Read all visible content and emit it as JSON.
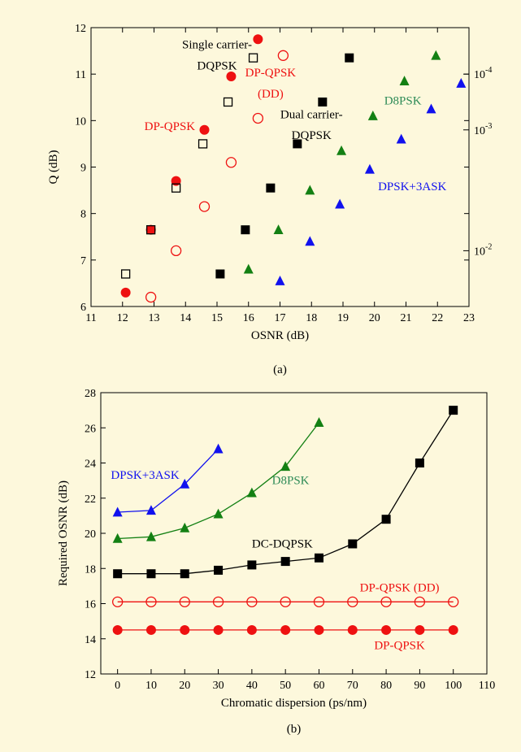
{
  "colors": {
    "background": "#fdf8dc",
    "red": "#ee1111",
    "black": "#000000",
    "green": "#138013",
    "blue": "#1111ee",
    "d8psk_label": "#2e8b57",
    "axis": "#000000"
  },
  "chart_data": [
    {
      "type": "scatter",
      "caption": "(a)",
      "xlabel": "OSNR (dB)",
      "ylabel": "Q (dB)",
      "xlim": [
        11,
        23
      ],
      "ylim": [
        6,
        12
      ],
      "xticks": [
        11,
        12,
        13,
        14,
        15,
        16,
        17,
        18,
        19,
        20,
        21,
        22,
        23
      ],
      "yticks": [
        6,
        7,
        8,
        9,
        10,
        11,
        12
      ],
      "right_axis": {
        "scale": "log (BER)",
        "ticks": [
          {
            "label": "10",
            "exponent": "-4",
            "q": 11.0
          },
          {
            "label": "10",
            "exponent": "-3",
            "q": 9.8
          },
          {
            "label": "10",
            "exponent": "-2",
            "q": 7.2
          }
        ]
      },
      "series": [
        {
          "name": "DP-QPSK",
          "marker": "circle-filled",
          "color": "#ee1111",
          "points": [
            [
              12.1,
              6.3
            ],
            [
              12.9,
              7.65
            ],
            [
              13.7,
              8.7
            ],
            [
              14.6,
              9.8
            ],
            [
              15.45,
              10.95
            ],
            [
              16.3,
              11.75
            ]
          ]
        },
        {
          "name": "DP-QPSK (DD)",
          "marker": "circle-open",
          "color": "#ee1111",
          "points": [
            [
              12.9,
              6.2
            ],
            [
              13.7,
              7.2
            ],
            [
              14.6,
              8.15
            ],
            [
              15.45,
              9.1
            ],
            [
              16.3,
              10.05
            ],
            [
              17.1,
              11.4
            ]
          ]
        },
        {
          "name": "Single carrier-DQPSK",
          "marker": "square-open",
          "color": "#000000",
          "points": [
            [
              12.1,
              6.7
            ],
            [
              12.9,
              7.65
            ],
            [
              13.7,
              8.55
            ],
            [
              14.55,
              9.5
            ],
            [
              15.35,
              10.4
            ],
            [
              16.15,
              11.35
            ]
          ]
        },
        {
          "name": "Dual carrier-DQPSK",
          "marker": "square-filled",
          "color": "#000000",
          "points": [
            [
              15.1,
              6.7
            ],
            [
              15.9,
              7.65
            ],
            [
              16.7,
              8.55
            ],
            [
              17.55,
              9.5
            ],
            [
              18.35,
              10.4
            ],
            [
              19.2,
              11.35
            ]
          ]
        },
        {
          "name": "D8PSK",
          "marker": "triangle-filled",
          "color": "#138013",
          "points": [
            [
              16.0,
              6.8
            ],
            [
              16.95,
              7.65
            ],
            [
              17.95,
              8.5
            ],
            [
              18.95,
              9.35
            ],
            [
              19.95,
              10.1
            ],
            [
              20.95,
              10.85
            ],
            [
              21.95,
              11.4
            ]
          ]
        },
        {
          "name": "DPSK+3ASK",
          "marker": "triangle-filled",
          "color": "#1111ee",
          "points": [
            [
              17.0,
              6.55
            ],
            [
              17.95,
              7.4
            ],
            [
              18.9,
              8.2
            ],
            [
              19.85,
              8.95
            ],
            [
              20.85,
              9.6
            ],
            [
              21.8,
              10.25
            ],
            [
              22.75,
              10.8
            ]
          ]
        }
      ],
      "labels": [
        {
          "text": "Single carrier-",
          "color": "#000000",
          "x": 15.0,
          "y": 11.55
        },
        {
          "text": "DQPSK",
          "color": "#000000",
          "x": 15.0,
          "y": 11.1
        },
        {
          "text": "DP-QPSK",
          "color": "#ee1111",
          "x": 16.7,
          "y": 10.95
        },
        {
          "text": "(DD)",
          "color": "#ee1111",
          "x": 16.7,
          "y": 10.5
        },
        {
          "text": "DP-QPSK",
          "color": "#ee1111",
          "x": 13.5,
          "y": 9.8
        },
        {
          "text": "Dual carrier-",
          "color": "#000000",
          "x": 18.0,
          "y": 10.05
        },
        {
          "text": "DQPSK",
          "color": "#000000",
          "x": 18.0,
          "y": 9.6
        },
        {
          "text": "D8PSK",
          "color": "#2e8b57",
          "x": 20.9,
          "y": 10.35
        },
        {
          "text": "DPSK+3ASK",
          "color": "#1111ee",
          "x": 21.2,
          "y": 8.5
        }
      ]
    },
    {
      "type": "line",
      "caption": "(b)",
      "xlabel": "Chromatic dispersion (ps/nm)",
      "ylabel": "Required OSNR (dB)",
      "xlim": [
        -5,
        110
      ],
      "ylim": [
        12,
        28
      ],
      "xticks": [
        0,
        10,
        20,
        30,
        40,
        50,
        60,
        70,
        80,
        90,
        100,
        110
      ],
      "yticks": [
        12,
        14,
        16,
        18,
        20,
        22,
        24,
        26,
        28
      ],
      "series": [
        {
          "name": "DPSK+3ASK",
          "marker": "triangle-filled",
          "color": "#1111ee",
          "x": [
            0,
            10,
            20,
            30
          ],
          "y": [
            21.2,
            21.3,
            22.8,
            24.8
          ]
        },
        {
          "name": "D8PSK",
          "marker": "triangle-filled",
          "color": "#138013",
          "x": [
            0,
            10,
            20,
            30,
            40,
            50,
            60
          ],
          "y": [
            19.7,
            19.8,
            20.3,
            21.1,
            22.3,
            23.8,
            26.3
          ]
        },
        {
          "name": "DC-DQPSK",
          "marker": "square-filled",
          "color": "#000000",
          "x": [
            0,
            10,
            20,
            30,
            40,
            50,
            60,
            70,
            80,
            90,
            100
          ],
          "y": [
            17.7,
            17.7,
            17.7,
            17.9,
            18.2,
            18.4,
            18.6,
            19.4,
            20.8,
            24.0,
            27.0
          ]
        },
        {
          "name": "DP-QPSK (DD)",
          "marker": "circle-open",
          "color": "#ee1111",
          "x": [
            0,
            10,
            20,
            30,
            40,
            50,
            60,
            70,
            80,
            90,
            100
          ],
          "y": [
            16.1,
            16.1,
            16.1,
            16.1,
            16.1,
            16.1,
            16.1,
            16.1,
            16.1,
            16.1,
            16.1
          ]
        },
        {
          "name": "DP-QPSK",
          "marker": "circle-filled",
          "color": "#ee1111",
          "x": [
            0,
            10,
            20,
            30,
            40,
            50,
            60,
            70,
            80,
            90,
            100
          ],
          "y": [
            14.5,
            14.5,
            14.5,
            14.5,
            14.5,
            14.5,
            14.5,
            14.5,
            14.5,
            14.5,
            14.5
          ]
        }
      ],
      "labels": [
        {
          "text": "DPSK+3ASK",
          "color": "#1111ee",
          "x": -2,
          "y": 23.1,
          "anchor": "start"
        },
        {
          "text": "D8PSK",
          "color": "#2e8b57",
          "x": 46,
          "y": 22.8,
          "anchor": "start"
        },
        {
          "text": "DC-DQPSK",
          "color": "#000000",
          "x": 40,
          "y": 19.2,
          "anchor": "start"
        },
        {
          "text": "DP-QPSK (DD)",
          "color": "#ee1111",
          "x": 84,
          "y": 16.7,
          "anchor": "middle"
        },
        {
          "text": "DP-QPSK",
          "color": "#ee1111",
          "x": 84,
          "y": 13.4,
          "anchor": "middle"
        }
      ]
    }
  ]
}
